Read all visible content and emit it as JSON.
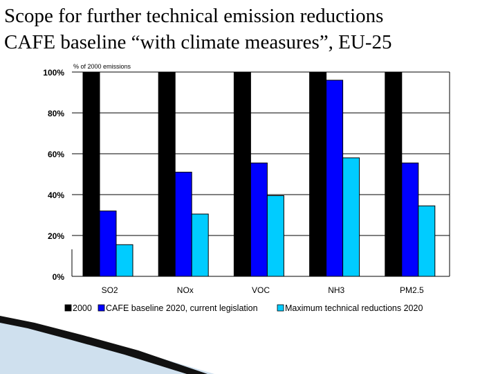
{
  "slide": {
    "title": "Scope for further technical emission reductions\n CAFE baseline “with climate measures”, EU-25"
  },
  "colors": {
    "background": "#ffffff",
    "grid": "#000000",
    "swoosh_dark": "#111111",
    "swoosh_light": "#cfe0ee"
  },
  "chart_data": {
    "type": "bar",
    "title": "",
    "xlabel": "",
    "ylabel": "% of 2000 emissions",
    "ylim": [
      0,
      100
    ],
    "yticks": [
      0,
      20,
      40,
      60,
      80,
      100
    ],
    "ytick_labels": [
      "0%",
      "20%",
      "40%",
      "60%",
      "80%",
      "100%"
    ],
    "grid": true,
    "legend_position": "bottom",
    "categories": [
      "SO2",
      "NOx",
      "VOC",
      "NH3",
      "PM2.5"
    ],
    "series": [
      {
        "name": "2000",
        "color": "#000000",
        "values": [
          100,
          100,
          100,
          100,
          100
        ]
      },
      {
        "name": "CAFE baseline 2020, current legislation",
        "color": "#0000ff",
        "values": [
          32,
          51,
          55.5,
          96,
          55.5
        ]
      },
      {
        "name": "Maximum technical reductions 2020",
        "color": "#00ccff",
        "values": [
          15.5,
          30.5,
          39.5,
          58,
          34.5
        ]
      }
    ]
  }
}
